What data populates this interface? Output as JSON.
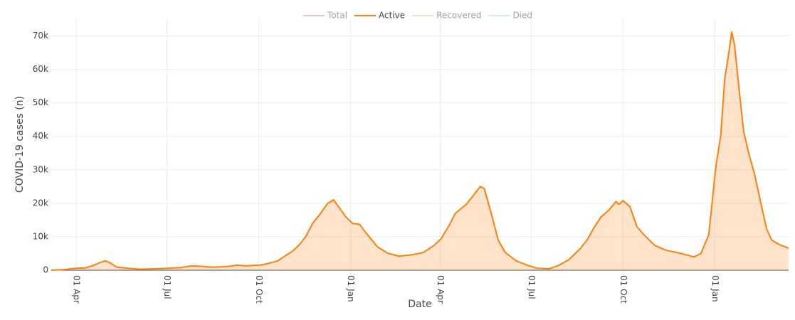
{
  "chart_data": {
    "type": "area",
    "x_label": "Date",
    "y_label": "COVID-19 cases (n)",
    "xlim": [
      -25,
      714
    ],
    "xticks": [
      {
        "value": 0,
        "label": "01 Apr"
      },
      {
        "value": 91,
        "label": "01 Jul"
      },
      {
        "value": 183,
        "label": "01 Oct"
      },
      {
        "value": 275,
        "label": "01 Jan"
      },
      {
        "value": 365,
        "label": "01 Apr"
      },
      {
        "value": 456,
        "label": "01 Jul"
      },
      {
        "value": 548,
        "label": "01 Oct"
      },
      {
        "value": 640,
        "label": "01 Jan"
      }
    ],
    "ylim": [
      0,
      75000
    ],
    "yticks": [
      0,
      {
        "value": 10000,
        "label": "10k"
      },
      {
        "value": 20000,
        "label": "20k"
      },
      {
        "value": 30000,
        "label": "30k"
      },
      {
        "value": 40000,
        "label": "40k"
      },
      {
        "value": 50000,
        "label": "50k"
      },
      {
        "value": 60000,
        "label": "60k"
      },
      {
        "value": 70000,
        "label": "70k"
      }
    ],
    "grid": true,
    "legend": "top",
    "series": [
      {
        "name": "Total",
        "color": "#e377c2",
        "visible": false
      },
      {
        "name": "Active",
        "color": "#ff7f0e",
        "visible": true,
        "x": [
          -25,
          -12,
          0,
          9,
          16,
          24,
          29,
          34,
          41,
          52,
          63,
          77,
          92,
          105,
          116,
          127,
          137,
          152,
          161,
          170,
          183,
          191,
          202,
          209,
          216,
          223,
          230,
          237,
          245,
          252,
          258,
          263,
          270,
          277,
          284,
          289,
          295,
          302,
          312,
          323,
          337,
          348,
          359,
          366,
          373,
          380,
          391,
          398,
          405,
          409,
          416,
          423,
          430,
          441,
          452,
          462,
          474,
          484,
          494,
          505,
          512,
          519,
          526,
          534,
          541,
          544,
          548,
          555,
          562,
          569,
          580,
          591,
          605,
          619,
          626,
          634,
          641,
          646,
          650,
          654,
          657,
          660,
          664,
          669,
          674,
          680,
          687,
          692,
          697,
          705,
          714
        ],
        "values": [
          0,
          200,
          600,
          700,
          1300,
          2300,
          2800,
          2200,
          900,
          600,
          300,
          400,
          600,
          800,
          1300,
          1100,
          900,
          1100,
          1500,
          1300,
          1500,
          1900,
          2800,
          4200,
          5500,
          7400,
          10000,
          14000,
          17000,
          20000,
          21000,
          19000,
          16000,
          14000,
          13700,
          11700,
          9500,
          7000,
          5100,
          4200,
          4600,
          5300,
          7500,
          9500,
          13000,
          17000,
          19700,
          22300,
          25000,
          24400,
          17000,
          9000,
          5300,
          2800,
          1500,
          600,
          400,
          1500,
          3200,
          6400,
          9000,
          12700,
          15900,
          18000,
          20500,
          19700,
          20800,
          19000,
          13000,
          10600,
          7400,
          6000,
          5100,
          4000,
          4900,
          10600,
          30800,
          40300,
          57300,
          64800,
          71300,
          66900,
          55200,
          41400,
          35000,
          28600,
          19000,
          12300,
          9000,
          7600,
          6600
        ]
      },
      {
        "name": "Recovered",
        "color": "#bcdc8a",
        "visible": false
      },
      {
        "name": "Died",
        "color": "#8fd3f0",
        "visible": false
      }
    ]
  }
}
